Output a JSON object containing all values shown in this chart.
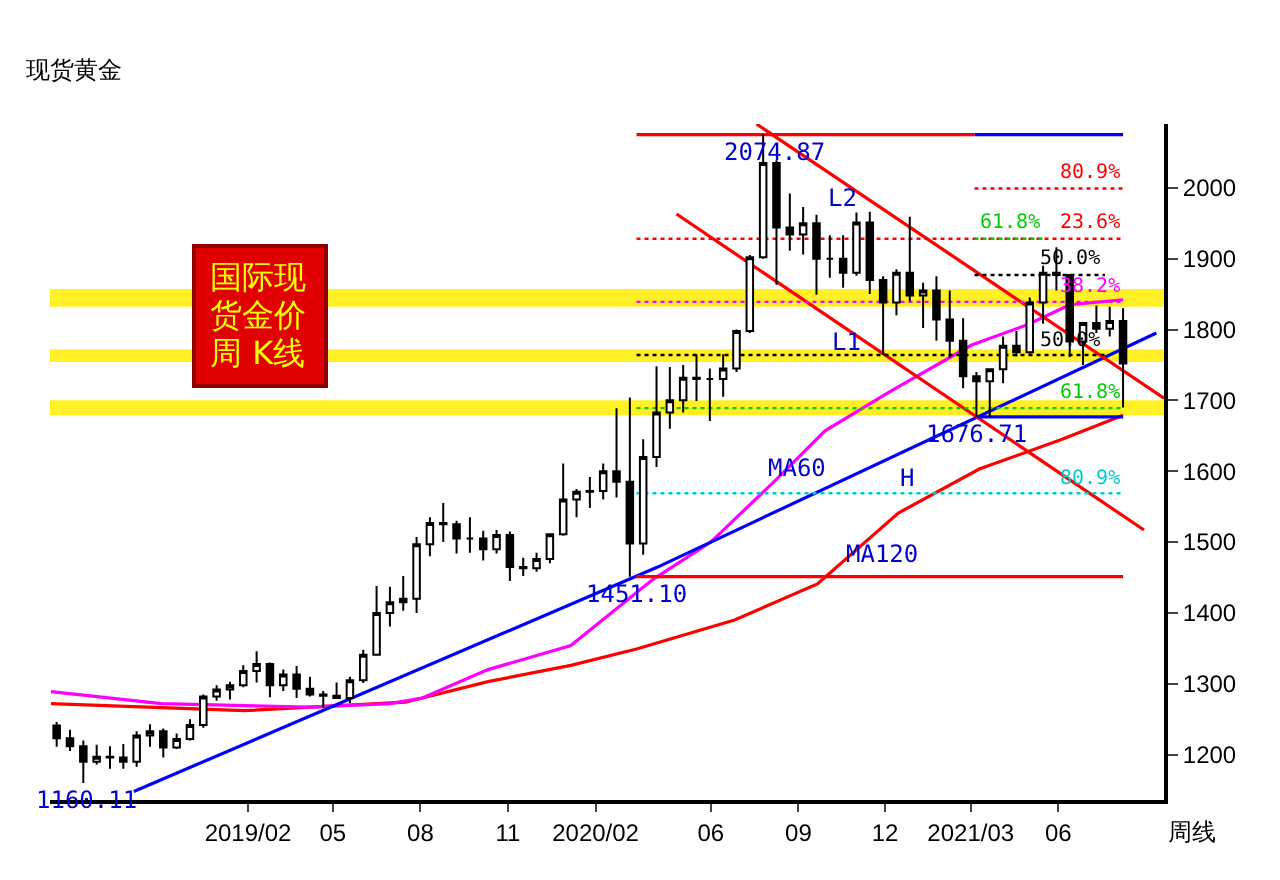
{
  "chart_data": {
    "type": "candlestick",
    "title": "现货黄金",
    "annotations": [
      "国际现货金价周 K线",
      "周线",
      {
        "text": "2074.87",
        "x": "2020-08-07",
        "y": 2074.87
      },
      {
        "text": "1451.10",
        "x": "2020-03-16",
        "y": 1451.1
      },
      {
        "text": "1676.71",
        "x": "2021-03-08",
        "y": 1676.71
      },
      {
        "text": "1160.11",
        "x": "2018-08-16",
        "y": 1160.11
      },
      {
        "text": "L2",
        "x": "2020-10-16",
        "y": 2010
      },
      {
        "text": "L1",
        "x": "2020-10-20",
        "y": 1807
      },
      {
        "text": "H",
        "x": "2020-12-24",
        "y": 1615
      },
      {
        "text": "MA60",
        "x": "2020-08-31",
        "y": 1630
      },
      {
        "text": "MA120",
        "x": "2020-11-28",
        "y": 1509
      }
    ],
    "x": [
      "2018-07-15",
      "2018-07-29",
      "2018-08-12",
      "2018-08-26",
      "2018-09-09",
      "2018-09-23",
      "2018-10-07",
      "2018-10-21",
      "2018-11-04",
      "2018-11-18",
      "2018-12-02",
      "2018-12-16",
      "2018-12-30",
      "2019-01-13",
      "2019-01-27",
      "2019-02-10",
      "2019-02-24",
      "2019-03-10",
      "2019-03-24",
      "2019-04-07",
      "2019-04-21",
      "2019-05-05",
      "2019-05-19",
      "2019-06-02",
      "2019-06-16",
      "2019-06-30",
      "2019-07-14",
      "2019-07-28",
      "2019-08-11",
      "2019-08-25",
      "2019-09-08",
      "2019-09-22",
      "2019-10-06",
      "2019-10-20",
      "2019-11-03",
      "2019-11-17",
      "2019-12-01",
      "2019-12-15",
      "2019-12-29",
      "2020-01-12",
      "2020-01-26",
      "2020-02-09",
      "2020-02-23",
      "2020-03-08",
      "2020-03-22",
      "2020-04-05",
      "2020-04-19",
      "2020-05-03",
      "2020-05-17",
      "2020-05-31",
      "2020-06-14",
      "2020-06-28",
      "2020-07-12",
      "2020-07-26",
      "2020-08-09",
      "2020-08-23",
      "2020-09-06",
      "2020-09-20",
      "2020-10-04",
      "2020-10-18",
      "2020-11-01",
      "2020-11-15",
      "2020-11-29",
      "2020-12-13",
      "2020-12-27",
      "2021-01-10",
      "2021-01-24",
      "2021-02-07",
      "2021-02-21",
      "2021-03-07",
      "2021-03-21",
      "2021-04-04",
      "2021-04-18",
      "2021-05-02",
      "2021-05-16",
      "2021-05-30",
      "2021-06-13",
      "2021-06-27",
      "2021-07-11",
      "2021-07-25",
      "2021-08-08"
    ],
    "ohlc": [
      [
        1241,
        1246,
        1211,
        1223
      ],
      [
        1223,
        1235,
        1205,
        1212
      ],
      [
        1212,
        1220,
        1160,
        1190
      ],
      [
        1190,
        1214,
        1186,
        1197
      ],
      [
        1197,
        1212,
        1180,
        1196
      ],
      [
        1196,
        1215,
        1180,
        1190
      ],
      [
        1190,
        1233,
        1183,
        1227
      ],
      [
        1227,
        1243,
        1211,
        1233
      ],
      [
        1233,
        1237,
        1196,
        1210
      ],
      [
        1210,
        1230,
        1208,
        1222
      ],
      [
        1222,
        1250,
        1220,
        1242
      ],
      [
        1242,
        1285,
        1238,
        1282
      ],
      [
        1282,
        1298,
        1276,
        1292
      ],
      [
        1292,
        1303,
        1278,
        1298
      ],
      [
        1298,
        1326,
        1295,
        1318
      ],
      [
        1318,
        1346,
        1302,
        1328
      ],
      [
        1328,
        1330,
        1281,
        1298
      ],
      [
        1298,
        1320,
        1290,
        1313
      ],
      [
        1313,
        1325,
        1280,
        1293
      ],
      [
        1293,
        1310,
        1282,
        1285
      ],
      [
        1285,
        1290,
        1266,
        1283
      ],
      [
        1283,
        1302,
        1279,
        1280
      ],
      [
        1280,
        1310,
        1273,
        1305
      ],
      [
        1305,
        1348,
        1301,
        1341
      ],
      [
        1341,
        1438,
        1340,
        1400
      ],
      [
        1400,
        1437,
        1381,
        1415
      ],
      [
        1415,
        1452,
        1403,
        1420
      ],
      [
        1420,
        1507,
        1400,
        1497
      ],
      [
        1497,
        1535,
        1480,
        1527
      ],
      [
        1527,
        1555,
        1500,
        1525
      ],
      [
        1525,
        1530,
        1484,
        1505
      ],
      [
        1505,
        1535,
        1485,
        1505
      ],
      [
        1505,
        1516,
        1474,
        1490
      ],
      [
        1490,
        1517,
        1484,
        1510
      ],
      [
        1510,
        1515,
        1445,
        1465
      ],
      [
        1465,
        1478,
        1452,
        1463
      ],
      [
        1463,
        1485,
        1458,
        1476
      ],
      [
        1476,
        1511,
        1470,
        1511
      ],
      [
        1511,
        1611,
        1509,
        1560
      ],
      [
        1560,
        1575,
        1535,
        1571
      ],
      [
        1571,
        1592,
        1548,
        1572
      ],
      [
        1572,
        1611,
        1560,
        1600
      ],
      [
        1600,
        1689,
        1563,
        1585
      ],
      [
        1585,
        1704,
        1451,
        1498
      ],
      [
        1498,
        1645,
        1482,
        1620
      ],
      [
        1620,
        1748,
        1606,
        1683
      ],
      [
        1683,
        1747,
        1660,
        1700
      ],
      [
        1700,
        1750,
        1683,
        1732
      ],
      [
        1732,
        1765,
        1699,
        1730
      ],
      [
        1730,
        1745,
        1671,
        1730
      ],
      [
        1730,
        1765,
        1705,
        1745
      ],
      [
        1745,
        1800,
        1740,
        1798
      ],
      [
        1798,
        1905,
        1795,
        1902
      ],
      [
        1902,
        2075,
        1900,
        2035
      ],
      [
        2035,
        2039,
        1863,
        1944
      ],
      [
        1944,
        1992,
        1911,
        1934
      ],
      [
        1934,
        1973,
        1906,
        1950
      ],
      [
        1950,
        1962,
        1849,
        1900
      ],
      [
        1900,
        1933,
        1873,
        1900
      ],
      [
        1900,
        1933,
        1859,
        1880
      ],
      [
        1880,
        1965,
        1876,
        1951
      ],
      [
        1951,
        1966,
        1850,
        1870
      ],
      [
        1870,
        1875,
        1764,
        1838
      ],
      [
        1838,
        1885,
        1820,
        1880
      ],
      [
        1880,
        1959,
        1840,
        1848
      ],
      [
        1848,
        1866,
        1802,
        1855
      ],
      [
        1855,
        1875,
        1784,
        1814
      ],
      [
        1814,
        1855,
        1760,
        1784
      ],
      [
        1784,
        1816,
        1717,
        1734
      ],
      [
        1734,
        1740,
        1677,
        1727
      ],
      [
        1727,
        1745,
        1677,
        1744
      ],
      [
        1744,
        1790,
        1724,
        1777
      ],
      [
        1777,
        1798,
        1762,
        1768
      ],
      [
        1768,
        1845,
        1763,
        1838
      ],
      [
        1838,
        1890,
        1808,
        1880
      ],
      [
        1880,
        1916,
        1855,
        1877
      ],
      [
        1877,
        1878,
        1761,
        1783
      ],
      [
        1783,
        1809,
        1750,
        1809
      ],
      [
        1809,
        1834,
        1795,
        1801
      ],
      [
        1801,
        1832,
        1790,
        1812
      ],
      [
        1812,
        1830,
        1690,
        1752
      ]
    ],
    "series": [
      {
        "type": "line",
        "color": "#ff0000",
        "line_style": "solid",
        "x": [
          "2018-07-09",
          "2019-01-28",
          "2019-07-16",
          "2019-10-11",
          "2020-01-06",
          "2020-03-15",
          "2020-06-26",
          "2020-09-21",
          "2020-12-15",
          "2021-03-10",
          "2021-06-05",
          "2021-08-08"
        ],
        "values": [
          1272,
          1262,
          1274,
          1303,
          1326,
          1349,
          1390,
          1441,
          1541,
          1603,
          1645,
          1679
        ]
      },
      {
        "type": "line",
        "color": "#ff00ff",
        "line_style": "solid",
        "x": [
          "2018-07-09",
          "2018-11-02",
          "2019-04-05",
          "2019-06-30",
          "2019-08-03",
          "2019-10-11",
          "2020-01-06",
          "2020-04-01",
          "2020-06-01",
          "2020-08-07",
          "2020-09-29",
          "2020-12-07",
          "2021-03-02",
          "2021-04-30",
          "2021-06-13",
          "2021-08-08"
        ],
        "values": [
          1289,
          1272,
          1267,
          1272,
          1280,
          1320,
          1354,
          1447,
          1500,
          1586,
          1657,
          1713,
          1778,
          1807,
          1835,
          1842
        ]
      },
      {
        "type": "line",
        "color": "#0000ff",
        "line_style": "solid",
        "x": [
          "2018-10-04",
          "2020-04-05",
          "2021-09-12"
        ],
        "values": [
          1148,
          1464,
          1795
        ]
      },
      {
        "type": "line",
        "color": "#ff0000",
        "line_style": "solid",
        "x": [
          "2020-07-19",
          "2021-09-20"
        ],
        "values": [
          2090,
          1703
        ]
      },
      {
        "type": "line",
        "color": "#ff0000",
        "line_style": "solid",
        "x": [
          "2020-04-26",
          "2021-08-30"
        ],
        "values": [
          1963,
          1517
        ]
      },
      {
        "type": "line",
        "color": "#ff0000",
        "line_style": "solid",
        "x": [
          "2020-03-15",
          "2021-03-05"
        ],
        "values": [
          2074.87,
          2074.87
        ]
      },
      {
        "type": "line",
        "color": "#0000ff",
        "line_style": "solid",
        "x": [
          "2021-03-05",
          "2021-08-08"
        ],
        "values": [
          2074.87,
          2074.87
        ]
      },
      {
        "type": "line",
        "color": "#ff0000",
        "line_style": "solid",
        "x": [
          "2020-03-15",
          "2021-08-08"
        ],
        "values": [
          1451.1,
          1451.1
        ]
      },
      {
        "type": "line",
        "color": "#0000ff",
        "line_style": "solid",
        "x": [
          "2021-03-08",
          "2021-08-08"
        ],
        "values": [
          1676.71,
          1676.71
        ]
      },
      {
        "type": "line",
        "name": "80.9%",
        "color": "#ff0000",
        "line_style": "dotted",
        "x": [
          "2021-03-05",
          "2021-08-08"
        ],
        "values": [
          1999,
          1999
        ]
      },
      {
        "type": "line",
        "name": "23.6%",
        "color": "#ff0000",
        "line_style": "dotted",
        "x": [
          "2020-03-15",
          "2021-08-08"
        ],
        "values": [
          1928,
          1928
        ]
      },
      {
        "type": "line",
        "name": "61.8%",
        "color": "#00cc00",
        "line_style": "dotted",
        "x": [
          "2021-03-05",
          "2021-05-18"
        ],
        "values": [
          1928,
          1928
        ]
      },
      {
        "type": "line",
        "name": "50.0%",
        "color": "#000000",
        "line_style": "dotted",
        "x": [
          "2021-03-05",
          "2021-07-20"
        ],
        "values": [
          1877,
          1877
        ]
      },
      {
        "type": "line",
        "name": "38.2%",
        "color": "#ff00ff",
        "line_style": "dotted",
        "x": [
          "2020-03-15",
          "2021-08-08"
        ],
        "values": [
          1839,
          1839
        ]
      },
      {
        "type": "line",
        "name": "50.0%",
        "color": "#000000",
        "line_style": "dotted",
        "x": [
          "2020-03-15",
          "2021-07-20"
        ],
        "values": [
          1764,
          1764
        ]
      },
      {
        "type": "line",
        "name": "61.8%",
        "color": "#00cc00",
        "line_style": "dotted",
        "x": [
          "2020-03-15",
          "2021-08-08"
        ],
        "values": [
          1689,
          1689
        ]
      },
      {
        "type": "line",
        "name": "80.9%",
        "color": "#00cccc",
        "line_style": "dotted",
        "x": [
          "2020-03-15",
          "2021-08-08"
        ],
        "values": [
          1569,
          1569
        ]
      }
    ],
    "bands": [
      {
        "axis": "y",
        "from": 1832,
        "to": 1857,
        "color": "#ffee00"
      },
      {
        "axis": "y",
        "from": 1754,
        "to": 1772,
        "color": "#ffee00"
      },
      {
        "axis": "y",
        "from": 1679,
        "to": 1700,
        "color": "#ffee00"
      }
    ],
    "xlim": [
      "2018-07-08",
      "2021-09-20"
    ],
    "xticks": [
      {
        "value": "2019-02-01",
        "label": "2019/02"
      },
      {
        "value": "2019-05-01",
        "label": "05"
      },
      {
        "value": "2019-08-01",
        "label": "08"
      },
      {
        "value": "2019-11-01",
        "label": "11"
      },
      {
        "value": "2020-02-01",
        "label": "2020/02"
      },
      {
        "value": "2020-06-01",
        "label": "06"
      },
      {
        "value": "2020-09-01",
        "label": "09"
      },
      {
        "value": "2020-12-01",
        "label": "12"
      },
      {
        "value": "2021-03-01",
        "label": "2021/03"
      },
      {
        "value": "2021-06-01",
        "label": "06"
      }
    ],
    "ylim": [
      1136,
      2090
    ],
    "yticks": [
      1200,
      1300,
      1400,
      1500,
      1600,
      1700,
      1800,
      1900,
      2000
    ],
    "grid": false
  }
}
